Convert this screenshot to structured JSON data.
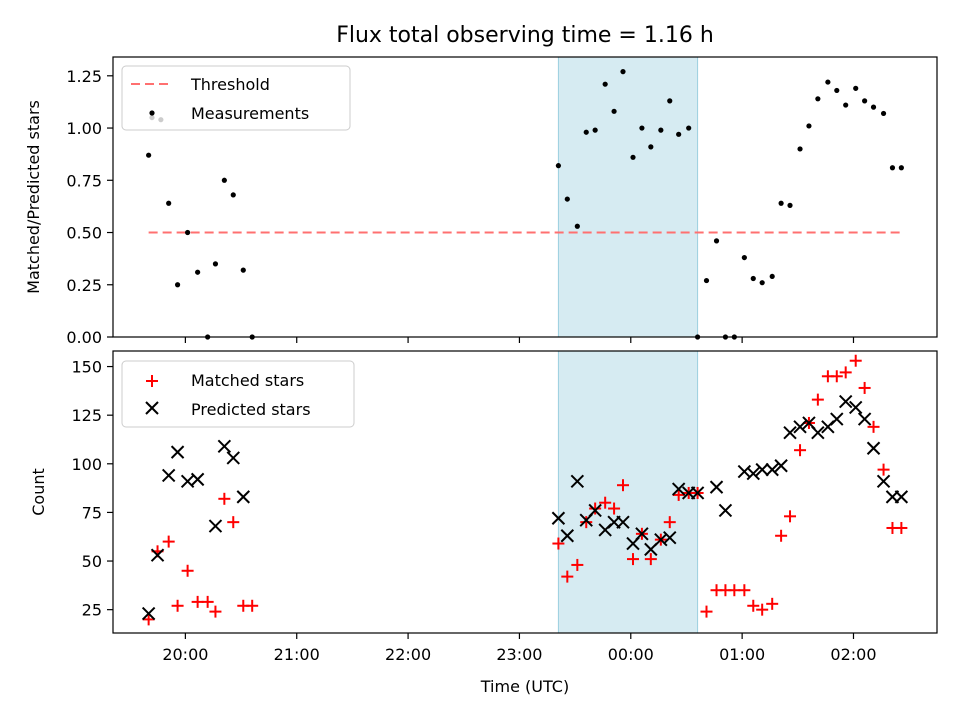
{
  "chart_data": {
    "type": "scatter",
    "title": "Flux total observing time = 1.16 h",
    "xlabel": "Time (UTC)",
    "x_tick_labels": [
      "20:00",
      "21:00",
      "22:00",
      "23:00",
      "00:00",
      "01:00",
      "02:00"
    ],
    "x_ticks_hours": [
      20,
      21,
      22,
      23,
      24,
      25,
      26
    ],
    "x_range_hours": [
      19.35,
      26.75
    ],
    "highlight_span_hours": [
      23.35,
      24.6
    ],
    "highlight_color": "#add8e6",
    "panels": [
      {
        "ylabel": "Matched/Predicted stars",
        "ylim": [
          0,
          1.34
        ],
        "yticks": [
          0.0,
          0.25,
          0.5,
          0.75,
          1.0,
          1.25
        ],
        "ytick_labels": [
          "0.00",
          "0.25",
          "0.50",
          "0.75",
          "1.00",
          "1.25"
        ],
        "legend_position": "top-left",
        "threshold": {
          "name": "Threshold",
          "value": 0.5,
          "x_from": 19.67,
          "x_to": 26.45,
          "color": "#ff6b6b"
        },
        "series": [
          {
            "name": "Measurements",
            "marker": "dot",
            "color": "#000000",
            "x": [
              19.67,
              19.7,
              19.78,
              19.85,
              19.93,
              20.02,
              20.11,
              20.2,
              20.27,
              20.35,
              20.43,
              20.52,
              20.6,
              23.35,
              23.43,
              23.52,
              23.6,
              23.68,
              23.77,
              23.85,
              23.93,
              24.02,
              24.1,
              24.18,
              24.27,
              24.35,
              24.43,
              24.52,
              24.6,
              24.68,
              24.77,
              24.85,
              24.93,
              25.02,
              25.1,
              25.18,
              25.27,
              25.35,
              25.43,
              25.52,
              25.6,
              25.68,
              25.77,
              25.85,
              25.93,
              26.02,
              26.1,
              26.18,
              26.27,
              26.35,
              26.43
            ],
            "y": [
              0.87,
              1.05,
              1.04,
              0.64,
              0.25,
              0.5,
              0.31,
              0.0,
              0.35,
              0.75,
              0.68,
              0.32,
              0.0,
              0.82,
              0.66,
              0.53,
              0.98,
              0.99,
              1.21,
              1.08,
              1.27,
              0.86,
              1.0,
              0.91,
              0.99,
              1.13,
              0.97,
              1.0,
              0.0,
              0.27,
              0.46,
              0.0,
              0.0,
              0.38,
              0.28,
              0.26,
              0.29,
              0.64,
              0.63,
              0.9,
              1.01,
              1.14,
              1.22,
              1.18,
              1.11,
              1.19,
              1.13,
              1.1,
              1.07,
              0.81,
              0.81
            ]
          }
        ]
      },
      {
        "ylabel": "Count",
        "ylim": [
          13,
          158
        ],
        "yticks": [
          25,
          50,
          75,
          100,
          125,
          150
        ],
        "ytick_labels": [
          "25",
          "50",
          "75",
          "100",
          "125",
          "150"
        ],
        "legend_position": "top-left",
        "series": [
          {
            "name": "Matched stars",
            "marker": "plus",
            "color": "#ff0000",
            "x": [
              19.67,
              19.75,
              19.85,
              19.93,
              20.02,
              20.11,
              20.2,
              20.27,
              20.35,
              20.43,
              20.52,
              20.6,
              23.35,
              23.43,
              23.52,
              23.6,
              23.68,
              23.77,
              23.85,
              23.93,
              24.02,
              24.1,
              24.18,
              24.27,
              24.35,
              24.43,
              24.52,
              24.6,
              24.68,
              24.77,
              24.85,
              24.93,
              25.02,
              25.1,
              25.18,
              25.27,
              25.35,
              25.43,
              25.52,
              25.6,
              25.68,
              25.77,
              25.85,
              25.93,
              26.02,
              26.1,
              26.18,
              26.27,
              26.35,
              26.43
            ],
            "y": [
              20,
              55,
              60,
              27,
              45,
              29,
              29,
              24,
              82,
              70,
              27,
              27,
              59,
              42,
              48,
              70,
              77,
              80,
              77,
              89,
              51,
              64,
              51,
              61,
              70,
              84,
              85,
              85,
              24,
              35,
              35,
              35,
              35,
              27,
              25,
              28,
              63,
              73,
              107,
              121,
              133,
              145,
              145,
              147,
              153,
              139,
              119,
              97,
              67,
              67
            ]
          },
          {
            "name": "Predicted stars",
            "marker": "x",
            "color": "#000000",
            "x": [
              19.67,
              19.75,
              19.85,
              19.93,
              20.02,
              20.11,
              20.27,
              20.35,
              20.43,
              20.52,
              23.35,
              23.43,
              23.52,
              23.6,
              23.68,
              23.77,
              23.85,
              23.93,
              24.02,
              24.1,
              24.18,
              24.27,
              24.35,
              24.43,
              24.52,
              24.6,
              24.77,
              24.85,
              25.02,
              25.1,
              25.18,
              25.27,
              25.35,
              25.43,
              25.52,
              25.6,
              25.68,
              25.77,
              25.85,
              25.93,
              26.02,
              26.1,
              26.18,
              26.27,
              26.35,
              26.43
            ],
            "y": [
              23,
              53,
              94,
              106,
              91,
              92,
              68,
              109,
              103,
              83,
              72,
              63,
              91,
              71,
              76,
              66,
              70,
              70,
              59,
              64,
              56,
              61,
              62,
              87,
              85,
              85,
              88,
              76,
              96,
              95,
              97,
              97,
              99,
              116,
              119,
              121,
              116,
              119,
              123,
              132,
              129,
              123,
              108,
              91,
              83,
              83
            ]
          }
        ]
      }
    ]
  }
}
